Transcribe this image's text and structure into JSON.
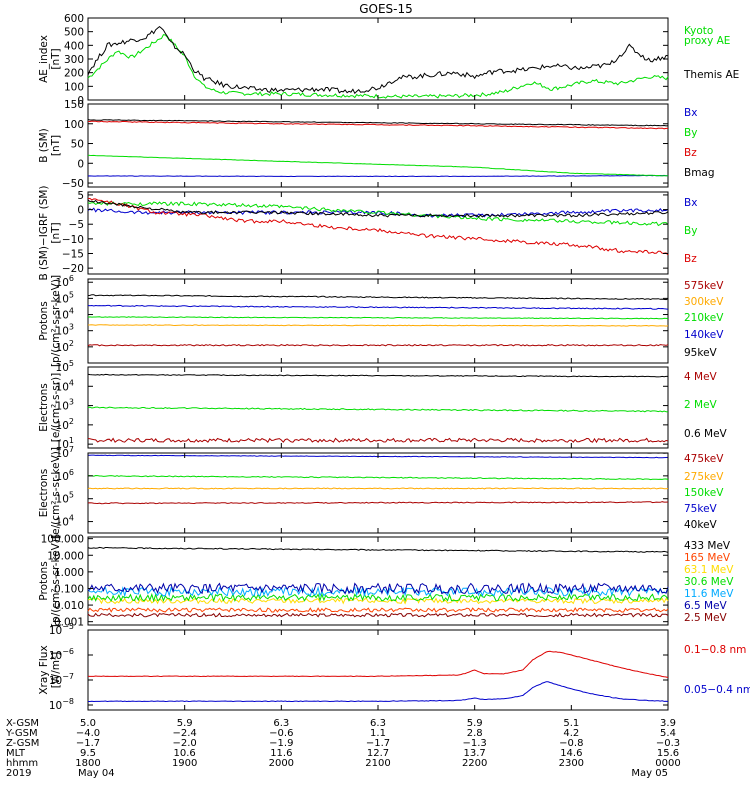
{
  "title": "GOES-15",
  "chart_data": [
    {
      "type": "line",
      "ylabel_lines": [
        "AE_index",
        "[nT]"
      ],
      "yticks": [
        {
          "v": 0,
          "t": "0"
        },
        {
          "v": 100,
          "t": "100"
        },
        {
          "v": 200,
          "t": "200"
        },
        {
          "v": 300,
          "t": "300"
        },
        {
          "v": 400,
          "t": "400"
        },
        {
          "v": 500,
          "t": "500"
        },
        {
          "v": 600,
          "t": "600"
        }
      ],
      "ylim": [
        0,
        600
      ],
      "log": false,
      "series": [
        {
          "name": "Kyoto proxy AE",
          "legend_lines": [
            "Kyoto",
            "proxy AE"
          ],
          "color": "#00dd00",
          "x": [
            0,
            0.3,
            0.45,
            0.6,
            0.8,
            1.0,
            1.1,
            1.2,
            1.3,
            1.4,
            1.5,
            1.8,
            2.0,
            2.3,
            2.6,
            2.9,
            3.2,
            3.5,
            3.8,
            4.1,
            4.3,
            4.6,
            4.8,
            5.0,
            5.2,
            5.5,
            5.8,
            6.0
          ],
          "y": [
            160,
            360,
            310,
            380,
            480,
            320,
            180,
            100,
            70,
            55,
            50,
            45,
            45,
            40,
            35,
            30,
            25,
            25,
            30,
            40,
            60,
            130,
            80,
            110,
            140,
            120,
            170,
            160
          ],
          "noise": 14
        },
        {
          "name": "Themis AE",
          "legend_lines": [
            "Themis AE"
          ],
          "color": "#000000",
          "x": [
            0,
            0.2,
            0.4,
            0.6,
            0.75,
            0.85,
            1.0,
            1.1,
            1.2,
            1.4,
            1.7,
            2.0,
            2.4,
            2.7,
            3.0,
            3.2,
            3.5,
            3.8,
            4.0,
            4.2,
            4.5,
            4.8,
            5.1,
            5.4,
            5.6,
            5.8,
            6.0
          ],
          "y": [
            200,
            400,
            430,
            460,
            540,
            420,
            330,
            220,
            160,
            110,
            80,
            70,
            80,
            60,
            90,
            160,
            180,
            200,
            170,
            210,
            220,
            250,
            230,
            260,
            390,
            290,
            320
          ],
          "noise": 18
        }
      ]
    },
    {
      "type": "line",
      "ylabel_lines": [
        "B (SM)",
        "[nT]"
      ],
      "yticks": [
        {
          "v": -50,
          "t": "−50"
        },
        {
          "v": 0,
          "t": "0"
        },
        {
          "v": 50,
          "t": "50"
        },
        {
          "v": 100,
          "t": "100"
        },
        {
          "v": 150,
          "t": "150"
        }
      ],
      "ylim": [
        -60,
        150
      ],
      "log": false,
      "series": [
        {
          "name": "Bx",
          "legend_lines": [
            "Bx"
          ],
          "color": "#0000cc",
          "x": [
            0,
            2,
            4,
            6
          ],
          "y": [
            -32,
            -33,
            -33,
            -31
          ],
          "noise": 0.5
        },
        {
          "name": "By",
          "legend_lines": [
            "By"
          ],
          "color": "#00dd00",
          "x": [
            0,
            2,
            4,
            5,
            6
          ],
          "y": [
            20,
            5,
            -10,
            -25,
            -32
          ],
          "noise": 0.5
        },
        {
          "name": "Bz",
          "legend_lines": [
            "Bz"
          ],
          "color": "#dd0000",
          "x": [
            0,
            2,
            4,
            6
          ],
          "y": [
            106,
            100,
            95,
            88
          ],
          "noise": 1
        },
        {
          "name": "Bmag",
          "legend_lines": [
            "Bmag"
          ],
          "color": "#000000",
          "x": [
            0,
            2,
            4,
            6
          ],
          "y": [
            110,
            105,
            100,
            95
          ],
          "noise": 0.8
        }
      ]
    },
    {
      "type": "line",
      "ylabel_lines": [
        "B (SM)−IGRF (SM)",
        "[nT]"
      ],
      "yticks": [
        {
          "v": -20,
          "t": "−20"
        },
        {
          "v": -15,
          "t": "−15"
        },
        {
          "v": -10,
          "t": "−10"
        },
        {
          "v": -5,
          "t": "−5"
        },
        {
          "v": 0,
          "t": "0"
        },
        {
          "v": 5,
          "t": "5"
        }
      ],
      "ylim": [
        -22,
        6
      ],
      "log": false,
      "series": [
        {
          "name": "Bx",
          "legend_lines": [
            "Bx"
          ],
          "color": "#0000cc",
          "x": [
            0,
            0.5,
            1,
            2,
            3,
            3.5,
            4,
            5,
            6
          ],
          "y": [
            0,
            -1,
            -1,
            -1,
            -1,
            -2,
            -2,
            -1,
            0
          ],
          "noise": 0.6
        },
        {
          "name": "By",
          "legend_lines": [
            "By"
          ],
          "color": "#00dd00",
          "x": [
            0,
            1,
            2,
            3,
            4,
            5,
            6
          ],
          "y": [
            2,
            2,
            1,
            -1,
            -3,
            -4,
            -5
          ],
          "noise": 0.6
        },
        {
          "name": "Bz",
          "legend_lines": [
            "Bz"
          ],
          "color": "#dd0000",
          "x": [
            0,
            0.3,
            0.7,
            1.2,
            1.6,
            2,
            2.5,
            3,
            3.5,
            4,
            4.5,
            5,
            5.5,
            6
          ],
          "y": [
            4,
            2,
            -1,
            -2,
            -4,
            -4,
            -6,
            -7,
            -9,
            -10,
            -11,
            -12,
            -14,
            -15
          ],
          "noise": 0.6
        },
        {
          "name": "Bmag",
          "legend_lines": [],
          "color": "#000000",
          "x": [
            0,
            1,
            2,
            3,
            4,
            5,
            6
          ],
          "y": [
            3,
            -1,
            -1,
            -2,
            -2,
            -2,
            -1
          ],
          "noise": 0.5
        }
      ]
    },
    {
      "type": "line",
      "ylabel_lines": [
        "Protons",
        "[p/(cm²-s-sr-keV)]"
      ],
      "yticks": [
        {
          "v": 2,
          "t": "10",
          "sup": "2"
        },
        {
          "v": 3,
          "t": "10",
          "sup": "3"
        },
        {
          "v": 4,
          "t": "10",
          "sup": "4"
        },
        {
          "v": 5,
          "t": "10",
          "sup": "5"
        },
        {
          "v": 6,
          "t": "10",
          "sup": "6"
        }
      ],
      "ylim": [
        1.0,
        6.2
      ],
      "log": true,
      "series": [
        {
          "name": "575keV",
          "legend_lines": [
            "575keV"
          ],
          "color": "#aa0000",
          "x": [
            0,
            6
          ],
          "y": [
            2.1,
            2.1
          ],
          "noise": 0.04
        },
        {
          "name": "300keV",
          "legend_lines": [
            "300keV"
          ],
          "color": "#ffaa00",
          "x": [
            0,
            6
          ],
          "y": [
            3.35,
            3.3
          ],
          "noise": 0.02
        },
        {
          "name": "210keV",
          "legend_lines": [
            "210keV"
          ],
          "color": "#00dd00",
          "x": [
            0,
            6
          ],
          "y": [
            3.85,
            3.75
          ],
          "noise": 0.02
        },
        {
          "name": "140keV",
          "legend_lines": [
            "140keV"
          ],
          "color": "#0000cc",
          "x": [
            0,
            6
          ],
          "y": [
            4.55,
            4.35
          ],
          "noise": 0.03
        },
        {
          "name": "95keV",
          "legend_lines": [
            "95keV"
          ],
          "color": "#000000",
          "x": [
            0,
            6
          ],
          "y": [
            5.2,
            4.95
          ],
          "noise": 0.03
        }
      ]
    },
    {
      "type": "line",
      "ylabel_lines": [
        "Electrons",
        "[e/(cm²-s-sr)]"
      ],
      "yticks": [
        {
          "v": 1,
          "t": "10",
          "sup": "1"
        },
        {
          "v": 2,
          "t": "10",
          "sup": "2"
        },
        {
          "v": 3,
          "t": "10",
          "sup": "3"
        },
        {
          "v": 4,
          "t": "10",
          "sup": "4"
        },
        {
          "v": 5,
          "t": "10",
          "sup": "5"
        }
      ],
      "ylim": [
        0.8,
        5.0
      ],
      "log": true,
      "series": [
        {
          "name": "4 MeV",
          "legend_lines": [
            "4 MeV"
          ],
          "color": "#aa0000",
          "x": [
            0,
            6
          ],
          "y": [
            1.2,
            1.2
          ],
          "noise": 0.1
        },
        {
          "name": "2 MeV",
          "legend_lines": [
            "2 MeV"
          ],
          "color": "#00dd00",
          "x": [
            0,
            6
          ],
          "y": [
            2.9,
            2.7
          ],
          "noise": 0.03
        },
        {
          "name": "0.6 MeV",
          "legend_lines": [
            "0.6 MeV"
          ],
          "color": "#000000",
          "x": [
            0,
            6
          ],
          "y": [
            4.6,
            4.5
          ],
          "noise": 0.02
        }
      ]
    },
    {
      "type": "line",
      "ylabel_lines": [
        "Electrons",
        "[e/(cm²-s-sr-keV)]"
      ],
      "yticks": [
        {
          "v": 4,
          "t": "10",
          "sup": "4"
        },
        {
          "v": 5,
          "t": "10",
          "sup": "5"
        },
        {
          "v": 6,
          "t": "10",
          "sup": "6"
        },
        {
          "v": 7,
          "t": "10",
          "sup": "7"
        }
      ],
      "ylim": [
        3.5,
        7.0
      ],
      "log": true,
      "series": [
        {
          "name": "475keV",
          "legend_lines": [
            "475keV"
          ],
          "color": "#aa0000",
          "x": [
            0,
            6
          ],
          "y": [
            4.8,
            4.85
          ],
          "noise": 0.02
        },
        {
          "name": "275keV",
          "legend_lines": [
            "275keV"
          ],
          "color": "#ffaa00",
          "x": [
            0,
            6
          ],
          "y": [
            5.45,
            5.45
          ],
          "noise": 0.02
        },
        {
          "name": "150keV",
          "legend_lines": [
            "150keV"
          ],
          "color": "#00dd00",
          "x": [
            0,
            6
          ],
          "y": [
            6.0,
            5.85
          ],
          "noise": 0.02
        },
        {
          "name": "75keV",
          "legend_lines": [
            "75keV"
          ],
          "color": "#0000cc",
          "x": [
            0,
            6
          ],
          "y": [
            6.9,
            6.8
          ],
          "noise": 0.01
        },
        {
          "name": "40keV",
          "legend_lines": [
            "40keV"
          ],
          "color": "#000000",
          "x": [
            0,
            6
          ],
          "y": [
            7.1,
            7.0
          ],
          "noise": 0.01
        }
      ]
    },
    {
      "type": "line",
      "ylabel_lines": [
        "Protons",
        "[p/(cm²-s-sr-keV)]"
      ],
      "yticks": [
        {
          "v": -3,
          "t": "0.001"
        },
        {
          "v": -2,
          "t": "0.010"
        },
        {
          "v": -1,
          "t": "0.100"
        },
        {
          "v": 0,
          "t": "1.000"
        },
        {
          "v": 1,
          "t": "10.000"
        },
        {
          "v": 2,
          "t": "100.000"
        }
      ],
      "ylim": [
        -3.2,
        2.1
      ],
      "log": true,
      "series": [
        {
          "name": "433 MeV",
          "legend_lines": [
            "433 MeV"
          ],
          "color": "#000000",
          "x": [
            0,
            6
          ],
          "y": [
            1.45,
            1.2
          ],
          "noise": 0.03
        },
        {
          "name": "165 MeV",
          "legend_lines": [
            "165 MeV"
          ],
          "color": "#ff4400",
          "x": [
            0,
            6
          ],
          "y": [
            -2.3,
            -2.3
          ],
          "noise": 0.12
        },
        {
          "name": "63.1 MeV",
          "legend_lines": [
            "63.1 MeV"
          ],
          "color": "#ffdd00",
          "x": [
            0,
            6
          ],
          "y": [
            -1.75,
            -1.75
          ],
          "noise": 0.15
        },
        {
          "name": "30.6 MeV",
          "legend_lines": [
            "30.6 MeV"
          ],
          "color": "#00dd00",
          "x": [
            0,
            6
          ],
          "y": [
            -1.55,
            -1.55
          ],
          "noise": 0.2
        },
        {
          "name": "11.6 MeV",
          "legend_lines": [
            "11.6 MeV"
          ],
          "color": "#00aaff",
          "x": [
            0,
            6
          ],
          "y": [
            -1.2,
            -1.2
          ],
          "noise": 0.25
        },
        {
          "name": "6.5 MeV",
          "legend_lines": [
            "6.5 MeV"
          ],
          "color": "#0000aa",
          "x": [
            0,
            6
          ],
          "y": [
            -1.0,
            -1.0
          ],
          "noise": 0.3
        },
        {
          "name": "2.5 MeV",
          "legend_lines": [
            "2.5 MeV"
          ],
          "color": "#880000",
          "x": [
            0,
            6
          ],
          "y": [
            -2.6,
            -2.6
          ],
          "noise": 0.1
        }
      ]
    },
    {
      "type": "line",
      "ylabel_lines": [
        "Xray Flux",
        "[W/m²]"
      ],
      "yticks": [
        {
          "v": -8,
          "t": "10",
          "sup": "−8"
        },
        {
          "v": -7,
          "t": "10",
          "sup": "−7"
        },
        {
          "v": -6,
          "t": "10",
          "sup": "−6"
        },
        {
          "v": -5,
          "t": "10",
          "sup": "−5"
        }
      ],
      "ylim": [
        -8.2,
        -5.0
      ],
      "log": true,
      "series": [
        {
          "name": "0.1−0.8 nm",
          "legend_lines": [
            "0.1−0.8 nm"
          ],
          "color": "#dd0000",
          "x": [
            0,
            1,
            2,
            3,
            3.85,
            4.0,
            4.1,
            4.3,
            4.5,
            4.6,
            4.75,
            4.9,
            5.2,
            5.5,
            5.8,
            6.0
          ],
          "y": [
            -6.85,
            -6.85,
            -6.85,
            -6.85,
            -6.8,
            -6.6,
            -6.75,
            -6.75,
            -6.6,
            -6.2,
            -5.85,
            -5.9,
            -6.2,
            -6.5,
            -6.75,
            -6.9
          ],
          "noise": 0.01
        },
        {
          "name": "0.05−0.4 nm",
          "legend_lines": [
            "0.05−0.4 nm"
          ],
          "color": "#0000cc",
          "x": [
            0,
            1,
            2,
            3,
            3.85,
            4.0,
            4.1,
            4.3,
            4.5,
            4.6,
            4.75,
            4.9,
            5.2,
            5.5,
            5.8,
            6.0
          ],
          "y": [
            -7.85,
            -7.85,
            -7.85,
            -7.85,
            -7.82,
            -7.72,
            -7.78,
            -7.75,
            -7.62,
            -7.3,
            -7.05,
            -7.25,
            -7.55,
            -7.75,
            -7.82,
            -7.85
          ],
          "noise": 0.012
        }
      ]
    }
  ],
  "xaxis": {
    "row_labels": [
      "X-GSM",
      "Y-GSM",
      "Z-GSM",
      "MLT",
      "hhmm",
      "2019"
    ],
    "columns": [
      [
        "5.0",
        "−4.0",
        "−1.7",
        "9.5",
        "1800",
        "May 04"
      ],
      [
        "5.9",
        "−2.4",
        "−2.0",
        "10.6",
        "1900",
        ""
      ],
      [
        "6.3",
        "−0.6",
        "−1.9",
        "11.6",
        "2000",
        ""
      ],
      [
        "6.3",
        "1.1",
        "−1.7",
        "12.7",
        "2100",
        ""
      ],
      [
        "5.9",
        "2.8",
        "−1.3",
        "13.7",
        "2200",
        ""
      ],
      [
        "5.1",
        "4.2",
        "−0.8",
        "14.6",
        "2300",
        ""
      ],
      [
        "3.9",
        "5.4",
        "−0.3",
        "15.6",
        "0000",
        "May 05"
      ]
    ],
    "hours": [
      0,
      1,
      2,
      3,
      4,
      5,
      6
    ],
    "xlim": [
      0,
      6
    ]
  }
}
